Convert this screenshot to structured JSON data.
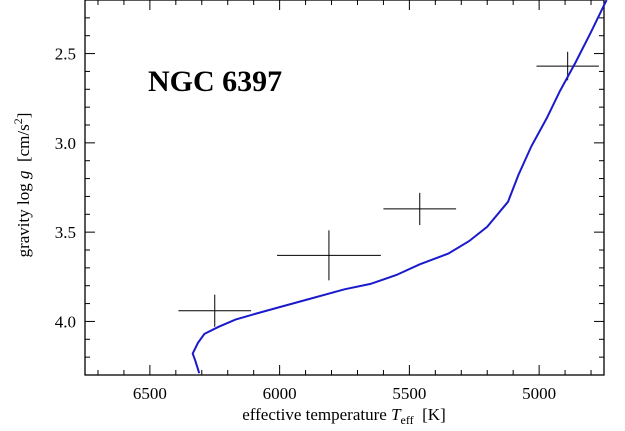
{
  "chart_data": {
    "type": "line",
    "title": "",
    "annotation": "NGC 6397",
    "xlabel": {
      "prefix": "effective temperature ",
      "symbol": "T",
      "subscript": "eff",
      "unit": "  [K]"
    },
    "ylabel": {
      "prefix": "gravity log ",
      "symbol": "g",
      "unit": "  [cm/s",
      "unit_sup": "2",
      "unit_close": "]"
    },
    "xlim": [
      6750,
      4750
    ],
    "ylim": [
      4.3,
      2.2
    ],
    "x_reversed": true,
    "y_reversed": true,
    "xticks": [
      6500,
      6000,
      5500,
      5000
    ],
    "xtick_labels": [
      "6500",
      "6000",
      "5500",
      "5000"
    ],
    "yticks": [
      2.5,
      3.0,
      3.5,
      4.0
    ],
    "ytick_labels": [
      "2.5",
      "3.0",
      "3.5",
      "4.0"
    ],
    "grid": false,
    "series": [
      {
        "kind": "line",
        "color": "#1a1acc",
        "points": [
          [
            6310,
            4.29
          ],
          [
            6325,
            4.22
          ],
          [
            6335,
            4.18
          ],
          [
            6315,
            4.12
          ],
          [
            6290,
            4.07
          ],
          [
            6235,
            4.03
          ],
          [
            6170,
            3.99
          ],
          [
            6100,
            3.96
          ],
          [
            6000,
            3.92
          ],
          [
            5900,
            3.88
          ],
          [
            5750,
            3.82
          ],
          [
            5650,
            3.79
          ],
          [
            5550,
            3.74
          ],
          [
            5460,
            3.68
          ],
          [
            5350,
            3.62
          ],
          [
            5270,
            3.55
          ],
          [
            5200,
            3.47
          ],
          [
            5120,
            3.33
          ],
          [
            5080,
            3.18
          ],
          [
            5030,
            3.02
          ],
          [
            4970,
            2.86
          ],
          [
            4920,
            2.71
          ],
          [
            4860,
            2.55
          ],
          [
            4800,
            2.38
          ],
          [
            4740,
            2.2
          ]
        ]
      },
      {
        "kind": "errorbars",
        "color": "#000000",
        "points": [
          {
            "x": 6250,
            "y": 3.94,
            "xerr": 140,
            "yerr": 0.09
          },
          {
            "x": 5810,
            "y": 3.63,
            "xerr": 200,
            "yerr": 0.14
          },
          {
            "x": 5460,
            "y": 3.37,
            "xerr": 140,
            "yerr": 0.09
          },
          {
            "x": 4890,
            "y": 2.57,
            "xerr": 120,
            "yerr": 0.08
          }
        ]
      }
    ]
  }
}
